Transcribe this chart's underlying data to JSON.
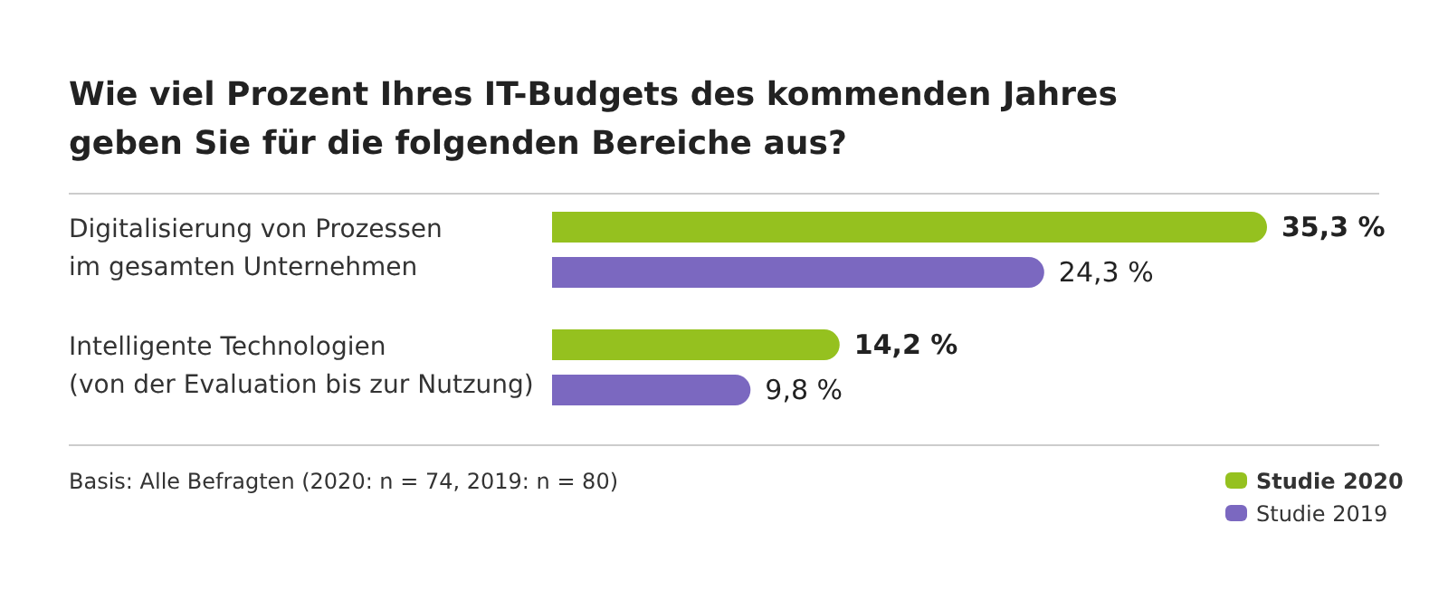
{
  "chart_data": {
    "type": "bar",
    "orientation": "horizontal",
    "title": "Wie viel Prozent Ihres IT-Budgets des kommenden Jahres\ngeben Sie für die folgenden Bereiche aus?",
    "categories": [
      "Digitalisierung von Prozessen\nim gesamten Unternehmen",
      "Intelligente Technologien\n(von der Evaluation bis zur Nutzung)"
    ],
    "series": [
      {
        "name": "Studie 2020",
        "color": "#95c11f",
        "values": [
          35.3,
          14.2
        ],
        "value_labels": [
          "35,3 %",
          "14,2 %"
        ]
      },
      {
        "name": "Studie 2019",
        "color": "#7b68c0",
        "values": [
          24.3,
          9.8
        ],
        "value_labels": [
          "24,3 %",
          "9,8 %"
        ]
      }
    ],
    "legend": "bottom right",
    "annotations": [
      "Basis: Alle Befragten (2020: n = 74, 2019: n = 80)"
    ]
  }
}
